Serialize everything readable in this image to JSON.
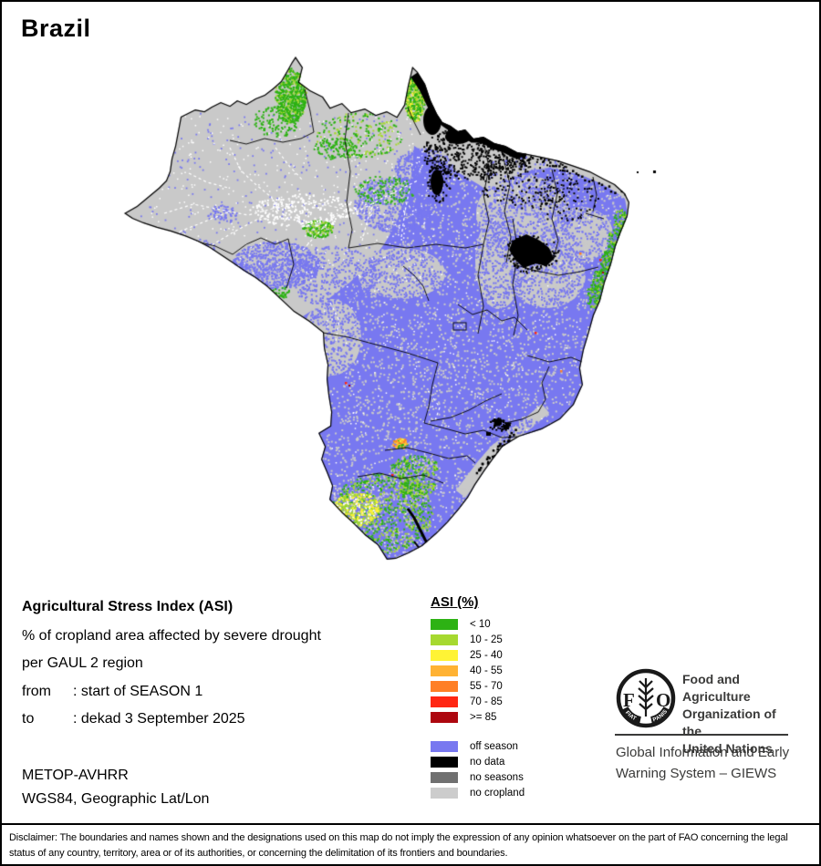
{
  "title": "Brazil",
  "info_block": {
    "heading": "Agricultural Stress Index (ASI)",
    "line1": "% of cropland area affected by severe drought",
    "line2": "per GAUL 2 region",
    "from_label": "from",
    "from_value": ": start of SEASON 1",
    "to_label": "to",
    "to_value": ": dekad 3 September 2025",
    "sensor": "METOP-AVHRR",
    "projection": "WGS84, Geographic Lat/Lon"
  },
  "legend": {
    "title": "ASI (%)",
    "asi_classes": [
      {
        "label": "< 10",
        "color": "#2db214"
      },
      {
        "label": "10 - 25",
        "color": "#a6d930"
      },
      {
        "label": "25 - 40",
        "color": "#fff335"
      },
      {
        "label": "40 - 55",
        "color": "#ffb233"
      },
      {
        "label": "55 - 70",
        "color": "#ff7f26"
      },
      {
        "label": "70 - 85",
        "color": "#ff2612"
      },
      {
        "label": ">= 85",
        "color": "#ad070f"
      }
    ],
    "status_classes": [
      {
        "label": "off season",
        "color": "#7878f0"
      },
      {
        "label": "no data",
        "color": "#000000"
      },
      {
        "label": "no seasons",
        "color": "#707070"
      },
      {
        "label": "no cropland",
        "color": "#cccccc"
      }
    ]
  },
  "branding": {
    "org_lines": [
      "Food and Agriculture",
      "Organization of the",
      "United Nations"
    ],
    "logo_motto_left": "FIAT",
    "logo_motto_right": "PANIS",
    "logo_letters": [
      "F",
      "O"
    ],
    "giews_lines": [
      "Global Information and Early",
      "Warning System – GIEWS"
    ]
  },
  "disclaimer": "Disclaimer: The boundaries and names shown and the designations used on this map do not imply the expression of any opinion whatsoever on the part of FAO concerning the legal status of any country, territory, area or of its authorities, or concerning the delimitation of its frontiers and boundaries."
}
